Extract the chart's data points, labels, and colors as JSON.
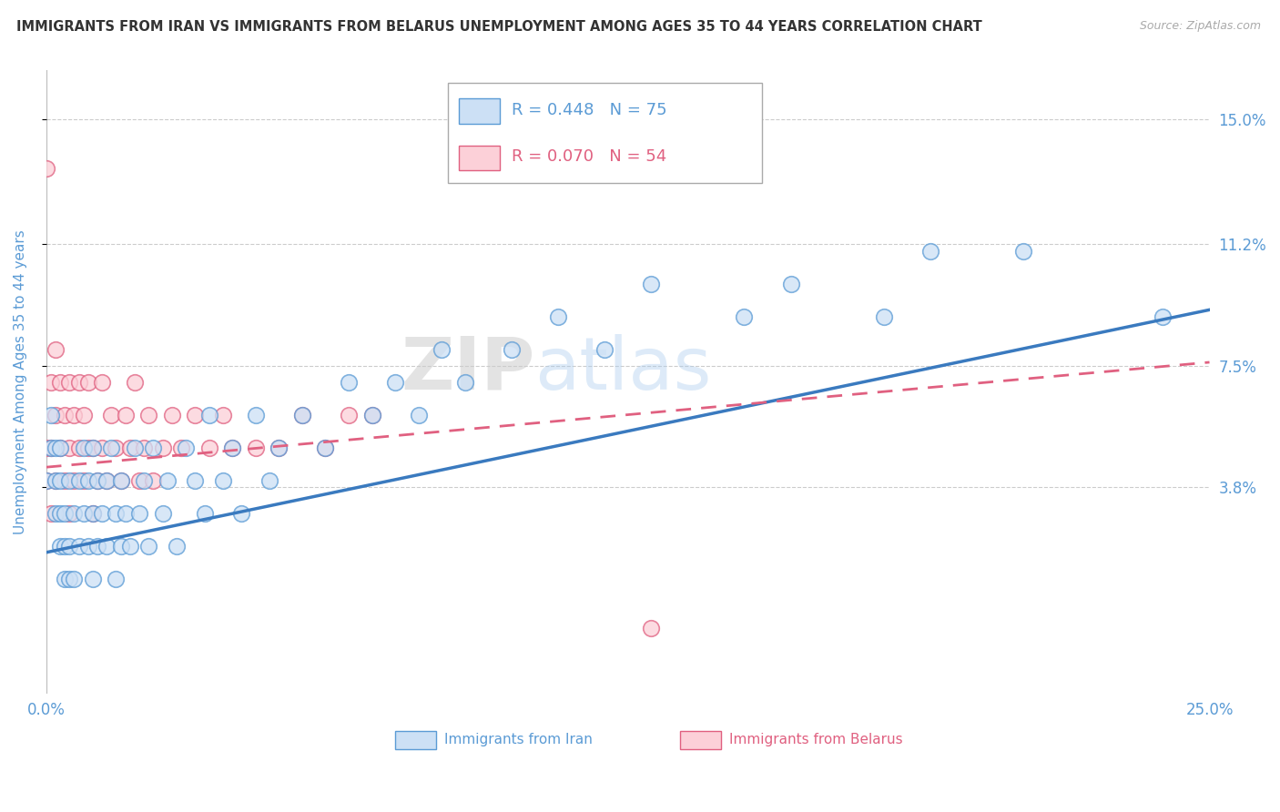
{
  "title": "IMMIGRANTS FROM IRAN VS IMMIGRANTS FROM BELARUS UNEMPLOYMENT AMONG AGES 35 TO 44 YEARS CORRELATION CHART",
  "source": "Source: ZipAtlas.com",
  "ylabel": "Unemployment Among Ages 35 to 44 years",
  "xlim": [
    0.0,
    0.25
  ],
  "ylim": [
    -0.025,
    0.165
  ],
  "xticks": [
    0.0,
    0.05,
    0.1,
    0.15,
    0.2,
    0.25
  ],
  "xticklabels": [
    "0.0%",
    "",
    "",
    "",
    "",
    "25.0%"
  ],
  "ytick_positions": [
    0.038,
    0.075,
    0.112,
    0.15
  ],
  "ytick_labels": [
    "3.8%",
    "7.5%",
    "11.2%",
    "15.0%"
  ],
  "legend_iran_r": "R = 0.448",
  "legend_iran_n": "N = 75",
  "legend_belarus_r": "R = 0.070",
  "legend_belarus_n": "N = 54",
  "legend_label_iran": "Immigrants from Iran",
  "legend_label_belarus": "Immigrants from Belarus",
  "color_iran_fill": "#cce0f5",
  "color_iran_edge": "#5b9bd5",
  "color_iran_line": "#3a7abf",
  "color_belarus_fill": "#fcd0d8",
  "color_belarus_edge": "#e06080",
  "color_belarus_line": "#e06080",
  "color_blue_text": "#5b9bd5",
  "color_pink_text": "#e06080",
  "color_gray_text": "#555555",
  "background": "#ffffff",
  "iran_scatter_x": [
    0.0,
    0.001,
    0.001,
    0.002,
    0.002,
    0.002,
    0.003,
    0.003,
    0.003,
    0.003,
    0.004,
    0.004,
    0.004,
    0.005,
    0.005,
    0.005,
    0.006,
    0.006,
    0.007,
    0.007,
    0.008,
    0.008,
    0.009,
    0.009,
    0.01,
    0.01,
    0.01,
    0.011,
    0.011,
    0.012,
    0.013,
    0.013,
    0.014,
    0.015,
    0.015,
    0.016,
    0.016,
    0.017,
    0.018,
    0.019,
    0.02,
    0.021,
    0.022,
    0.023,
    0.025,
    0.026,
    0.028,
    0.03,
    0.032,
    0.034,
    0.035,
    0.038,
    0.04,
    0.042,
    0.045,
    0.048,
    0.05,
    0.055,
    0.06,
    0.065,
    0.07,
    0.075,
    0.08,
    0.085,
    0.09,
    0.1,
    0.11,
    0.12,
    0.13,
    0.15,
    0.16,
    0.18,
    0.19,
    0.21,
    0.24
  ],
  "iran_scatter_y": [
    0.04,
    0.05,
    0.06,
    0.03,
    0.04,
    0.05,
    0.02,
    0.03,
    0.04,
    0.05,
    0.01,
    0.02,
    0.03,
    0.01,
    0.02,
    0.04,
    0.01,
    0.03,
    0.02,
    0.04,
    0.03,
    0.05,
    0.02,
    0.04,
    0.01,
    0.03,
    0.05,
    0.02,
    0.04,
    0.03,
    0.02,
    0.04,
    0.05,
    0.01,
    0.03,
    0.02,
    0.04,
    0.03,
    0.02,
    0.05,
    0.03,
    0.04,
    0.02,
    0.05,
    0.03,
    0.04,
    0.02,
    0.05,
    0.04,
    0.03,
    0.06,
    0.04,
    0.05,
    0.03,
    0.06,
    0.04,
    0.05,
    0.06,
    0.05,
    0.07,
    0.06,
    0.07,
    0.06,
    0.08,
    0.07,
    0.08,
    0.09,
    0.08,
    0.1,
    0.09,
    0.1,
    0.09,
    0.11,
    0.11,
    0.09
  ],
  "belarus_scatter_x": [
    0.0,
    0.0,
    0.0,
    0.001,
    0.001,
    0.001,
    0.002,
    0.002,
    0.002,
    0.003,
    0.003,
    0.004,
    0.004,
    0.005,
    0.005,
    0.005,
    0.006,
    0.006,
    0.007,
    0.007,
    0.008,
    0.008,
    0.009,
    0.009,
    0.01,
    0.01,
    0.011,
    0.012,
    0.012,
    0.013,
    0.014,
    0.015,
    0.016,
    0.017,
    0.018,
    0.019,
    0.02,
    0.021,
    0.022,
    0.023,
    0.025,
    0.027,
    0.029,
    0.032,
    0.035,
    0.038,
    0.04,
    0.045,
    0.05,
    0.055,
    0.06,
    0.065,
    0.07,
    0.13
  ],
  "belarus_scatter_y": [
    0.04,
    0.05,
    0.135,
    0.03,
    0.05,
    0.07,
    0.04,
    0.06,
    0.08,
    0.05,
    0.07,
    0.04,
    0.06,
    0.03,
    0.05,
    0.07,
    0.04,
    0.06,
    0.05,
    0.07,
    0.04,
    0.06,
    0.05,
    0.07,
    0.03,
    0.05,
    0.04,
    0.05,
    0.07,
    0.04,
    0.06,
    0.05,
    0.04,
    0.06,
    0.05,
    0.07,
    0.04,
    0.05,
    0.06,
    0.04,
    0.05,
    0.06,
    0.05,
    0.06,
    0.05,
    0.06,
    0.05,
    0.05,
    0.05,
    0.06,
    0.05,
    0.06,
    0.06,
    -0.005
  ],
  "iran_line_x0": 0.0,
  "iran_line_x1": 0.25,
  "iran_line_y0": 0.018,
  "iran_line_y1": 0.092,
  "belarus_line_x0": 0.0,
  "belarus_line_x1": 0.25,
  "belarus_line_y0": 0.044,
  "belarus_line_y1": 0.076
}
